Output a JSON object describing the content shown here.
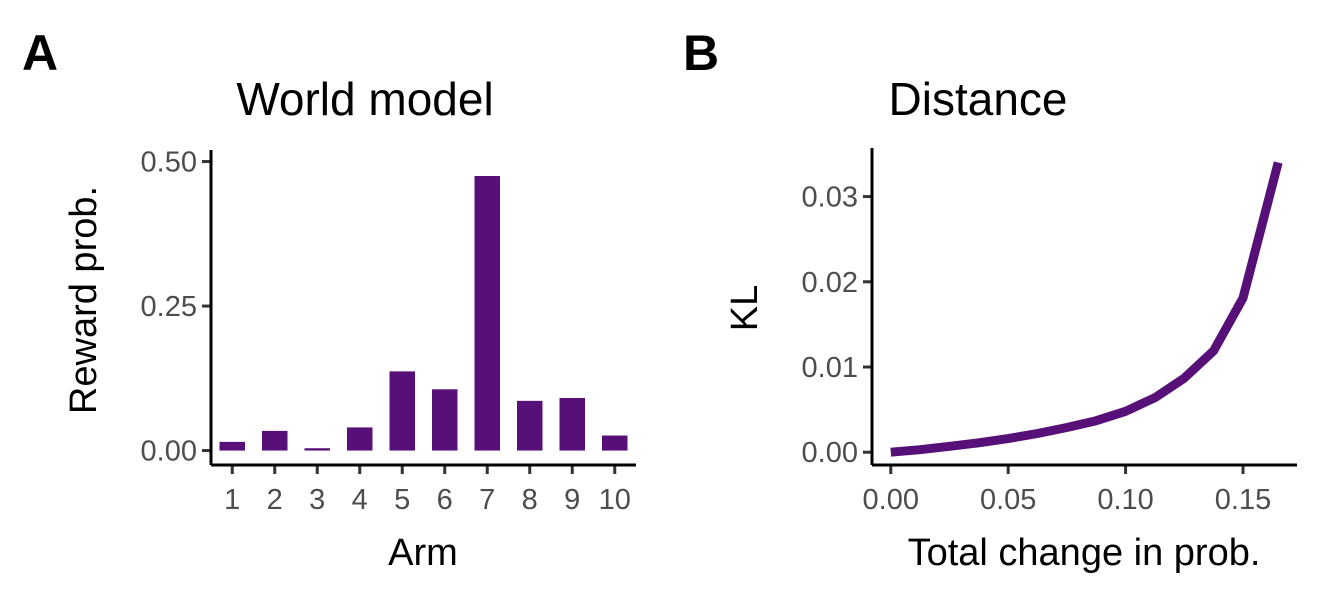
{
  "panels": {
    "a_label": "A",
    "b_label": "B"
  },
  "colors": {
    "series": "#561078"
  },
  "chart_data": [
    {
      "type": "bar",
      "title": "World model",
      "xlabel": "Arm",
      "ylabel": "Reward prob.",
      "categories": [
        "1",
        "2",
        "3",
        "4",
        "5",
        "6",
        "7",
        "8",
        "9",
        "10"
      ],
      "values": [
        0.015,
        0.034,
        0.004,
        0.04,
        0.137,
        0.106,
        0.475,
        0.086,
        0.091,
        0.026
      ],
      "ylim": [
        -0.025,
        0.52
      ],
      "yticks": [
        0.0,
        0.25,
        0.5
      ],
      "ytick_labels": [
        "0.00",
        "0.25",
        "0.50"
      ],
      "grid": false
    },
    {
      "type": "line",
      "title": "Distance",
      "xlabel": "Total change in prob.",
      "ylabel": "KL",
      "x": [
        0.0,
        0.0125,
        0.025,
        0.0375,
        0.05,
        0.0625,
        0.075,
        0.0875,
        0.1,
        0.1125,
        0.125,
        0.1375,
        0.15,
        0.165
      ],
      "y": [
        0.0,
        0.0003,
        0.0007,
        0.0011,
        0.0016,
        0.0022,
        0.0029,
        0.0037,
        0.0048,
        0.0064,
        0.0087,
        0.0119,
        0.0181,
        0.034
      ],
      "xlim": [
        -0.008,
        0.173
      ],
      "ylim": [
        -0.0015,
        0.0357
      ],
      "xticks": [
        0.0,
        0.05,
        0.1,
        0.15
      ],
      "xtick_labels": [
        "0.00",
        "0.05",
        "0.10",
        "0.15"
      ],
      "yticks": [
        0.0,
        0.01,
        0.02,
        0.03
      ],
      "ytick_labels": [
        "0.00",
        "0.01",
        "0.02",
        "0.03"
      ],
      "grid": false
    }
  ]
}
